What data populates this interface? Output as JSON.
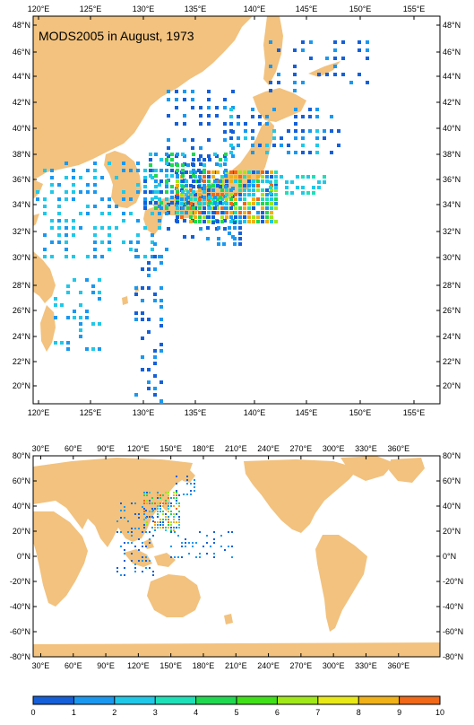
{
  "title": "MODS2005 in August, 1973",
  "colors": {
    "land": "#f2c27e",
    "ocean": "#ffffff",
    "frame": "#000000"
  },
  "regional_map": {
    "lon_labels": [
      "120°E",
      "125°E",
      "130°E",
      "135°E",
      "140°E",
      "145°E",
      "150°E",
      "155°E"
    ],
    "lat_labels": [
      "20°N",
      "22°N",
      "24°N",
      "26°N",
      "28°N",
      "30°N",
      "32°N",
      "34°N",
      "36°N",
      "38°N",
      "40°N",
      "42°N",
      "44°N",
      "46°N",
      "48°N"
    ]
  },
  "global_map": {
    "lon_labels": [
      "30°E",
      "60°E",
      "90°E",
      "120°E",
      "150°E",
      "180°E",
      "210°E",
      "240°E",
      "270°E",
      "300°E",
      "330°E",
      "360°E"
    ],
    "lat_labels": [
      "80°N",
      "60°N",
      "40°N",
      "20°N",
      "0°N",
      "-20°N",
      "-40°N",
      "-60°N",
      "-80°N"
    ]
  },
  "colorbar": {
    "labels": [
      "0",
      "1",
      "2",
      "3",
      "4",
      "5",
      "6",
      "7",
      "8",
      "9",
      "10"
    ],
    "colors": [
      "#1560d8",
      "#1a98f0",
      "#20c8e8",
      "#1ee0b8",
      "#20d850",
      "#40e018",
      "#a0e818",
      "#e8e818",
      "#f0b018",
      "#f06818"
    ]
  }
}
